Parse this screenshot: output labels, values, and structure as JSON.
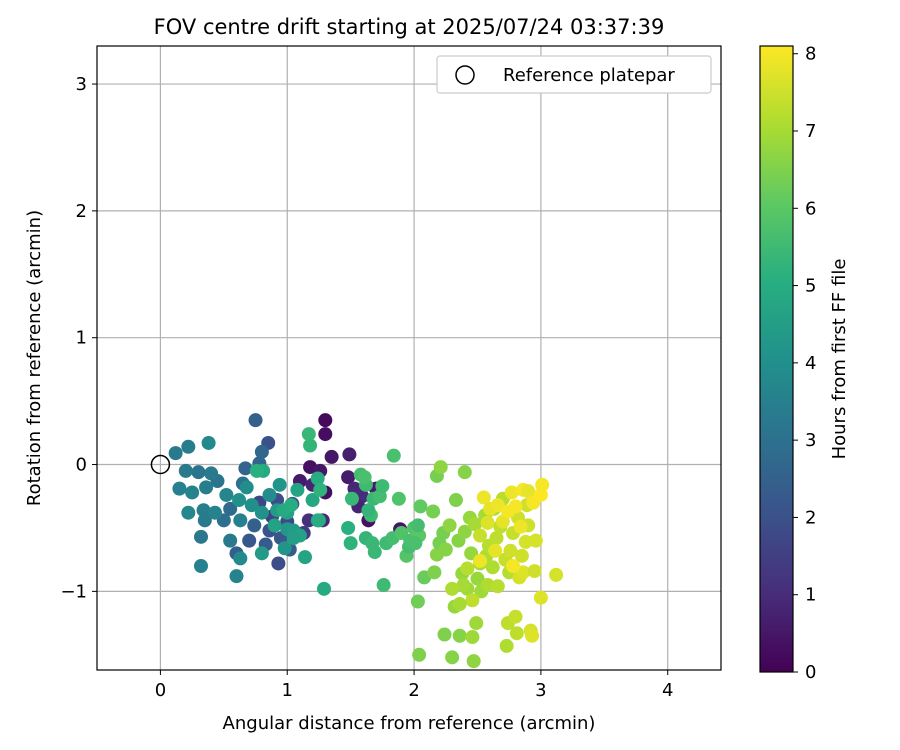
{
  "chart_data": {
    "type": "scatter",
    "title": "FOV centre drift starting at 2025/07/24 03:37:39",
    "xlabel": "Angular distance from reference (arcmin)",
    "ylabel": "Rotation from reference (arcmin)",
    "xlim": [
      -0.5,
      4.42
    ],
    "ylim": [
      -1.62,
      3.3
    ],
    "xticks": [
      0,
      1,
      2,
      3,
      4
    ],
    "yticks": [
      -1,
      0,
      1,
      2,
      3
    ],
    "grid": true,
    "legend": {
      "position": "top-right",
      "entries": [
        "Reference platepar"
      ]
    },
    "reference": {
      "label": "Reference platepar",
      "x": 0,
      "y": 0
    },
    "colorbar": {
      "label": "Hours from first FF file",
      "colormap": "viridis",
      "range": [
        0,
        8.1
      ],
      "ticks": [
        0,
        1,
        2,
        3,
        4,
        5,
        6,
        7,
        8
      ]
    },
    "points": [
      [
        1.3,
        0.35,
        0.2
      ],
      [
        1.3,
        0.24,
        0.3
      ],
      [
        1.35,
        0.06,
        0.5
      ],
      [
        1.49,
        0.08,
        0.7
      ],
      [
        1.18,
        -0.02,
        0.4
      ],
      [
        1.26,
        -0.05,
        0.5
      ],
      [
        1.48,
        -0.1,
        0.6
      ],
      [
        1.1,
        -0.13,
        0.6
      ],
      [
        1.2,
        -0.16,
        0.8
      ],
      [
        1.3,
        -0.22,
        0.3
      ],
      [
        1.53,
        -0.19,
        0.9
      ],
      [
        1.59,
        -0.25,
        1.0
      ],
      [
        1.7,
        -0.19,
        0.6
      ],
      [
        1.56,
        -0.33,
        0.8
      ],
      [
        1.64,
        -0.44,
        0.4
      ],
      [
        1.28,
        -0.44,
        0.9
      ],
      [
        1.17,
        -0.44,
        1.1
      ],
      [
        1.13,
        -0.54,
        1.4
      ],
      [
        1.89,
        -0.51,
        0.5
      ],
      [
        0.78,
        -0.3,
        1.7
      ],
      [
        0.92,
        -0.28,
        1.9
      ],
      [
        1.04,
        -0.31,
        2.0
      ],
      [
        0.88,
        -0.41,
        1.6
      ],
      [
        1.0,
        -0.45,
        1.8
      ],
      [
        0.86,
        -0.52,
        2.1
      ],
      [
        0.95,
        -0.58,
        2.2
      ],
      [
        0.83,
        -0.63,
        2.3
      ],
      [
        0.93,
        -0.78,
        1.9
      ],
      [
        1.02,
        -0.67,
        2.4
      ],
      [
        0.74,
        -0.48,
        2.5
      ],
      [
        0.7,
        -0.6,
        2.2
      ],
      [
        0.85,
        0.17,
        2.0
      ],
      [
        0.78,
        0.01,
        2.6
      ],
      [
        0.67,
        -0.03,
        2.6
      ],
      [
        0.6,
        -0.7,
        2.4
      ],
      [
        0.55,
        -0.35,
        2.8
      ],
      [
        0.5,
        -0.44,
        2.9
      ],
      [
        0.65,
        -0.15,
        3.0
      ],
      [
        0.75,
        0.35,
        2.5
      ],
      [
        0.8,
        0.1,
        2.7
      ],
      [
        0.45,
        -0.13,
        3.1
      ],
      [
        0.4,
        -0.07,
        3.3
      ],
      [
        0.3,
        -0.06,
        3.1
      ],
      [
        0.2,
        -0.05,
        3.3
      ],
      [
        0.22,
        0.14,
        3.4
      ],
      [
        0.12,
        0.09,
        3.3
      ],
      [
        0.15,
        -0.19,
        3.5
      ],
      [
        0.25,
        -0.22,
        3.6
      ],
      [
        0.36,
        -0.18,
        3.4
      ],
      [
        0.34,
        -0.36,
        3.4
      ],
      [
        0.35,
        -0.44,
        3.3
      ],
      [
        0.43,
        -0.38,
        3.6
      ],
      [
        0.22,
        -0.38,
        3.7
      ],
      [
        0.32,
        -0.57,
        3.2
      ],
      [
        0.32,
        -0.8,
        3.5
      ],
      [
        0.38,
        0.17,
        3.8
      ],
      [
        0.52,
        -0.24,
        3.7
      ],
      [
        0.55,
        -0.6,
        3.3
      ],
      [
        0.6,
        -0.88,
        3.6
      ],
      [
        0.63,
        -0.74,
        3.8
      ],
      [
        0.68,
        -0.18,
        3.9
      ],
      [
        0.63,
        -0.44,
        3.5
      ],
      [
        0.72,
        -0.32,
        4.0
      ],
      [
        0.8,
        -0.38,
        4.1
      ],
      [
        0.62,
        -0.28,
        4.1
      ],
      [
        0.86,
        -0.24,
        3.9
      ],
      [
        0.94,
        -0.16,
        4.2
      ],
      [
        1.0,
        -0.51,
        4.3
      ],
      [
        0.92,
        -0.36,
        4.4
      ],
      [
        0.98,
        -0.66,
        4.2
      ],
      [
        1.05,
        -0.52,
        4.4
      ],
      [
        1.1,
        -0.56,
        4.6
      ],
      [
        1.0,
        -0.38,
        4.6
      ],
      [
        1.08,
        -0.2,
        4.7
      ],
      [
        1.2,
        -0.28,
        4.8
      ],
      [
        1.24,
        -0.44,
        4.6
      ],
      [
        1.29,
        -0.98,
        4.9
      ],
      [
        1.14,
        -0.73,
        4.7
      ],
      [
        1.05,
        -0.58,
        4.5
      ],
      [
        0.8,
        -0.7,
        4.4
      ],
      [
        0.9,
        -0.48,
        4.6
      ],
      [
        0.97,
        -0.36,
        4.9
      ],
      [
        1.03,
        -0.32,
        5.0
      ],
      [
        0.81,
        -0.05,
        4.9
      ],
      [
        0.76,
        -0.05,
        5.1
      ],
      [
        1.24,
        -0.11,
        5.0
      ],
      [
        1.25,
        -0.44,
        5.0
      ],
      [
        1.26,
        -0.2,
        5.2
      ],
      [
        1.18,
        0.15,
        5.3
      ],
      [
        1.17,
        0.24,
        5.4
      ],
      [
        1.48,
        -0.5,
        5.1
      ],
      [
        1.5,
        -0.62,
        5.2
      ],
      [
        1.51,
        -0.27,
        5.4
      ],
      [
        1.62,
        -0.16,
        5.5
      ],
      [
        1.58,
        -0.08,
        5.6
      ],
      [
        1.61,
        -0.1,
        5.7
      ],
      [
        1.66,
        -0.4,
        5.5
      ],
      [
        1.64,
        -0.36,
        5.3
      ],
      [
        1.68,
        -0.27,
        5.4
      ],
      [
        1.73,
        -0.25,
        5.6
      ],
      [
        1.75,
        -0.17,
        5.5
      ],
      [
        1.76,
        -0.95,
        5.5
      ],
      [
        1.62,
        -0.58,
        5.3
      ],
      [
        1.67,
        -0.62,
        5.4
      ],
      [
        1.69,
        -0.69,
        5.4
      ],
      [
        1.78,
        -0.62,
        5.5
      ],
      [
        1.83,
        -0.58,
        5.6
      ],
      [
        1.84,
        0.07,
        5.7
      ],
      [
        1.88,
        -0.27,
        5.8
      ],
      [
        1.9,
        -0.54,
        5.8
      ],
      [
        1.94,
        -0.72,
        5.9
      ],
      [
        1.96,
        -0.65,
        5.6
      ],
      [
        1.97,
        -0.6,
        5.7
      ],
      [
        2.0,
        -0.5,
        5.8
      ],
      [
        2.02,
        -0.53,
        5.9
      ],
      [
        2.04,
        -0.56,
        6.0
      ],
      [
        2.01,
        -0.62,
        5.7
      ],
      [
        2.03,
        -0.48,
        5.6
      ],
      [
        2.05,
        -0.33,
        6.1
      ],
      [
        2.08,
        -0.89,
        6.2
      ],
      [
        2.03,
        -1.08,
        6.3
      ],
      [
        2.04,
        -1.5,
        6.5
      ],
      [
        2.15,
        -0.37,
        6.4
      ],
      [
        2.16,
        -0.85,
        6.5
      ],
      [
        2.18,
        -0.71,
        6.6
      ],
      [
        2.2,
        -0.62,
        6.4
      ],
      [
        2.18,
        -0.09,
        6.4
      ],
      [
        2.21,
        -0.02,
        6.7
      ],
      [
        2.23,
        -0.54,
        6.4
      ],
      [
        2.25,
        -0.67,
        6.6
      ],
      [
        2.24,
        -1.34,
        6.5
      ],
      [
        2.28,
        -0.48,
        6.7
      ],
      [
        2.3,
        -1.52,
        6.6
      ],
      [
        2.32,
        -1.12,
        6.8
      ],
      [
        2.33,
        -0.28,
        6.5
      ],
      [
        2.35,
        -0.6,
        6.6
      ],
      [
        2.36,
        -1.35,
        6.6
      ],
      [
        2.38,
        -0.86,
        6.8
      ],
      [
        2.4,
        -0.06,
        6.6
      ],
      [
        2.4,
        -0.53,
        6.7
      ],
      [
        2.42,
        -0.98,
        6.9
      ],
      [
        2.44,
        -0.42,
        6.8
      ],
      [
        2.45,
        -0.7,
        6.8
      ],
      [
        2.46,
        -1.36,
        6.9
      ],
      [
        2.47,
        -1.55,
        6.7
      ],
      [
        2.48,
        -0.47,
        7.0
      ],
      [
        2.49,
        -1.25,
        6.9
      ],
      [
        2.5,
        -0.9,
        6.8
      ],
      [
        2.52,
        -0.78,
        7.0
      ],
      [
        2.53,
        -1.0,
        6.9
      ],
      [
        2.56,
        -0.4,
        7.0
      ],
      [
        2.57,
        -0.72,
        7.1
      ],
      [
        2.58,
        -0.95,
        7.1
      ],
      [
        2.59,
        -0.64,
        7.2
      ],
      [
        2.62,
        -0.81,
        7.1
      ],
      [
        2.63,
        -0.35,
        7.1
      ],
      [
        2.65,
        -0.58,
        7.3
      ],
      [
        2.66,
        -0.96,
        7.2
      ],
      [
        2.68,
        -0.49,
        7.3
      ],
      [
        2.7,
        -0.27,
        7.2
      ],
      [
        2.72,
        -0.75,
        7.4
      ],
      [
        2.73,
        -1.43,
        7.1
      ],
      [
        2.74,
        -1.25,
        7.3
      ],
      [
        2.75,
        -0.85,
        7.2
      ],
      [
        2.76,
        -0.68,
        7.5
      ],
      [
        2.78,
        -0.54,
        7.4
      ],
      [
        2.8,
        -1.2,
        7.4
      ],
      [
        2.81,
        -1.33,
        7.3
      ],
      [
        2.82,
        -0.42,
        7.5
      ],
      [
        2.83,
        -0.89,
        7.6
      ],
      [
        2.85,
        -0.72,
        7.5
      ],
      [
        2.86,
        -0.85,
        7.7
      ],
      [
        2.88,
        -0.61,
        7.6
      ],
      [
        2.89,
        -0.32,
        7.5
      ],
      [
        2.9,
        -0.48,
        7.5
      ],
      [
        2.92,
        -1.31,
        7.6
      ],
      [
        2.93,
        -1.35,
        7.7
      ],
      [
        2.95,
        -0.84,
        7.5
      ],
      [
        2.96,
        -0.6,
        7.6
      ],
      [
        3.0,
        -1.05,
        7.7
      ],
      [
        3.12,
        -0.87,
        7.6
      ],
      [
        2.39,
        -0.95,
        7.0
      ],
      [
        2.42,
        -0.82,
        7.2
      ],
      [
        2.46,
        -1.07,
        7.3
      ],
      [
        2.3,
        -0.98,
        7.1
      ],
      [
        2.36,
        -1.1,
        7.0
      ],
      [
        2.52,
        -0.56,
        7.4
      ],
      [
        2.58,
        -0.46,
        7.7
      ],
      [
        2.55,
        -0.26,
        7.9
      ],
      [
        2.6,
        -0.35,
        7.8
      ],
      [
        2.66,
        -0.32,
        7.9
      ],
      [
        2.7,
        -0.45,
        7.8
      ],
      [
        2.74,
        -0.37,
        8.0
      ],
      [
        2.77,
        -0.22,
        7.9
      ],
      [
        2.8,
        -0.33,
        8.0
      ],
      [
        2.84,
        -0.49,
        7.9
      ],
      [
        2.86,
        -0.2,
        8.0
      ],
      [
        2.9,
        -0.21,
        7.8
      ],
      [
        2.94,
        -0.3,
        8.0
      ],
      [
        3.0,
        -0.24,
        8.1
      ],
      [
        3.01,
        -0.16,
        8.0
      ],
      [
        2.52,
        -0.76,
        7.9
      ],
      [
        2.78,
        -0.8,
        8.0
      ],
      [
        2.64,
        -0.68,
        7.8
      ]
    ]
  }
}
